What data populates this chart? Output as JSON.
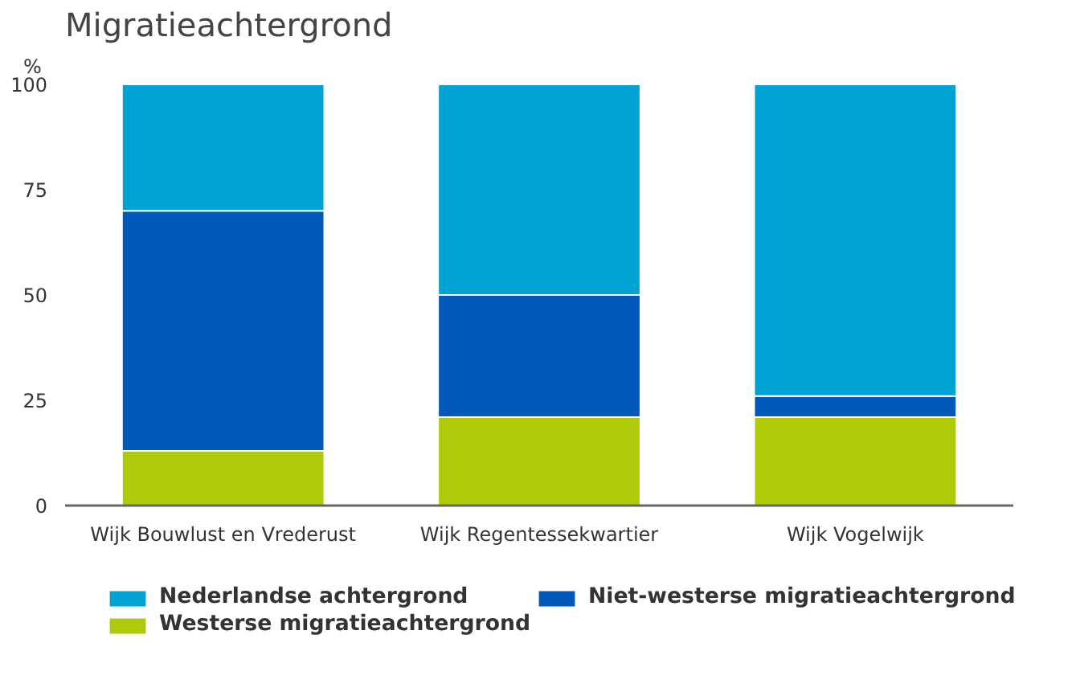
{
  "chart_data": {
    "type": "bar",
    "title": "Migratieachtergrond",
    "ylabel": "%",
    "stacked": true,
    "categories": [
      "Wijk Bouwlust en Vrederust",
      "Wijk Regentessekwartier",
      "Wijk Vogelwijk"
    ],
    "series": [
      {
        "name": "Westerse migratieachtergrond",
        "color": "#afca0b",
        "values": [
          13,
          21,
          21
        ]
      },
      {
        "name": "Niet-westerse migratieachtergrond",
        "color": "#0058b8",
        "values": [
          57,
          29,
          5
        ]
      },
      {
        "name": "Nederlandse achtergrond",
        "color": "#00a1d3",
        "values": [
          30,
          50,
          74
        ]
      }
    ],
    "ylim": [
      0,
      100
    ],
    "yticks": [
      0,
      25,
      50,
      75,
      100
    ],
    "grid": false,
    "legend": "bottom"
  }
}
